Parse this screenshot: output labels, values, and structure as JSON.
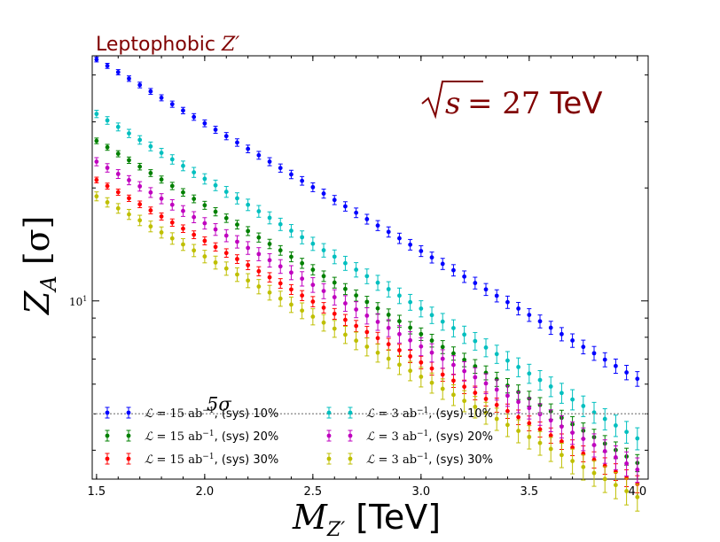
{
  "chart_data": {
    "type": "scatter",
    "title": "Leptophobic Z'",
    "title_parts": {
      "text": "Leptophobic ",
      "math": "Z′"
    },
    "annotation": {
      "math_sqrt": "s",
      "math_eq": " = 27",
      "unit": " TeV"
    },
    "threshold": {
      "value": 5,
      "label": "5σ"
    },
    "xlabel": {
      "math": "M",
      "sub": "Z′",
      "unit": " [TeV]"
    },
    "ylabel": {
      "math": "Z",
      "sub": "A",
      "unit": " [σ]"
    },
    "x_ticks": [
      "1.5",
      "2.0",
      "2.5",
      "3.0",
      "3.5",
      "4.0"
    ],
    "y_tick_label": {
      "base": "10",
      "exp": "1"
    },
    "xlim": [
      1.48,
      4.05
    ],
    "ylim": [
      3.35,
      45
    ],
    "yscale": "log",
    "grid": false,
    "legend_position": "lower-left",
    "x": [
      1.5,
      1.55,
      1.6,
      1.65,
      1.7,
      1.75,
      1.8,
      1.85,
      1.9,
      1.95,
      2.0,
      2.05,
      2.1,
      2.15,
      2.2,
      2.25,
      2.3,
      2.35,
      2.4,
      2.45,
      2.5,
      2.55,
      2.6,
      2.65,
      2.7,
      2.75,
      2.8,
      2.85,
      2.9,
      2.95,
      3.0,
      3.05,
      3.1,
      3.15,
      3.2,
      3.25,
      3.3,
      3.35,
      3.4,
      3.45,
      3.5,
      3.55,
      3.6,
      3.65,
      3.7,
      3.75,
      3.8,
      3.85,
      3.9,
      3.95,
      4.0
    ],
    "series": [
      {
        "name": "L = 15 ab⁻¹, (sys) 10%",
        "lumi": "15",
        "sys": "(sys) 10%",
        "color": "#0000ff",
        "start": 44.0,
        "end": 6.2,
        "err_frac": 0.03
      },
      {
        "name": "L = 15 ab⁻¹, (sys) 20%",
        "lumi": "15",
        "sys": "(sys) 20%",
        "color": "#008000",
        "start": 26.7,
        "end": 3.7,
        "err_frac": 0.035
      },
      {
        "name": "L = 15 ab⁻¹, (sys) 30%",
        "lumi": "15",
        "sys": "(sys) 30%",
        "color": "#ff0000",
        "start": 21.0,
        "end": 3.25,
        "err_frac": 0.035
      },
      {
        "name": "L = 3 ab⁻¹, (sys) 10%",
        "lumi": "3",
        "sys": "(sys) 10%",
        "color": "#00bfbf",
        "start": 31.5,
        "end": 4.3,
        "err_frac": 0.045
      },
      {
        "name": "L = 3 ab⁻¹, (sys) 20%",
        "lumi": "3",
        "sys": "(sys) 20%",
        "color": "#bf00bf",
        "start": 23.5,
        "end": 3.55,
        "err_frac": 0.05
      },
      {
        "name": "L = 3 ab⁻¹, (sys) 30%",
        "lumi": "3",
        "sys": "(sys) 30%",
        "color": "#bfbf00",
        "start": 19.0,
        "end": 3.0,
        "err_frac": 0.055
      }
    ],
    "legend_math": {
      "L": "ℒ",
      "eq": " = ",
      "unit": "ab",
      "unit_exp": "−1"
    }
  }
}
